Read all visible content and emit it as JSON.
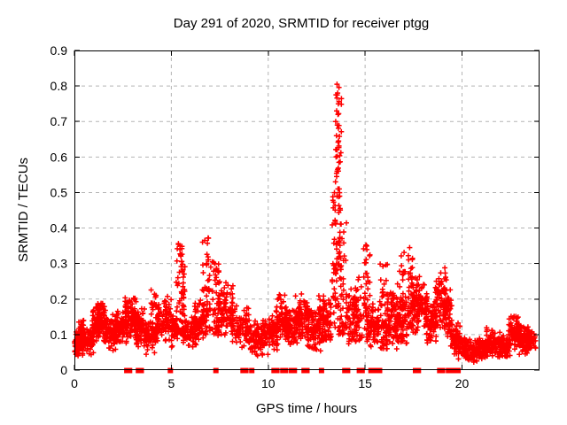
{
  "colors": {
    "marker": "#ff0000",
    "grid": "#b4b4b4",
    "axis": "#000000",
    "background": "#ffffff"
  },
  "chart_data": {
    "type": "scatter",
    "title": "Day 291 of 2020, SRMTID for receiver ptgg",
    "xlabel": "GPS time / hours",
    "ylabel": "SRMTID / TECUs",
    "xlim": [
      0,
      24
    ],
    "ylim": [
      0,
      0.9
    ],
    "xticks": [
      0,
      5,
      10,
      15,
      20
    ],
    "xtick_labels": [
      "0",
      "5",
      "10",
      "15",
      "20"
    ],
    "yticks": [
      0,
      0.1,
      0.2,
      0.3,
      0.4,
      0.5,
      0.6,
      0.7,
      0.8,
      0.9
    ],
    "ytick_labels": [
      "0",
      "0.1",
      "0.2",
      "0.3",
      "0.4",
      "0.5",
      "0.6",
      "0.7",
      "0.8",
      "0.9"
    ],
    "grid": true,
    "legend": false,
    "marker_glyph": "plus",
    "marker_color": "#ff0000",
    "zero_flag_glyph": "filled-square",
    "seed": 2020291,
    "point_clusters": [
      [
        0.0,
        0.35,
        0.03,
        0.12,
        60,
        0
      ],
      [
        0.2,
        0.5,
        0.06,
        0.15,
        40,
        0
      ],
      [
        0.4,
        1.0,
        0.04,
        0.12,
        90,
        0
      ],
      [
        0.9,
        1.3,
        0.07,
        0.18,
        60,
        0
      ],
      [
        1.1,
        1.6,
        0.09,
        0.21,
        70,
        0
      ],
      [
        1.5,
        2.2,
        0.05,
        0.16,
        90,
        0
      ],
      [
        2.1,
        2.7,
        0.07,
        0.17,
        80,
        0
      ],
      [
        2.6,
        3.2,
        0.08,
        0.21,
        90,
        0
      ],
      [
        3.1,
        3.7,
        0.06,
        0.18,
        80,
        0
      ],
      [
        3.6,
        4.3,
        0.04,
        0.15,
        80,
        0
      ],
      [
        3.95,
        4.25,
        0.14,
        0.23,
        18,
        0
      ],
      [
        4.3,
        5.0,
        0.07,
        0.21,
        90,
        0
      ],
      [
        5.0,
        5.35,
        0.06,
        0.16,
        40,
        0
      ],
      [
        5.25,
        5.7,
        0.1,
        0.36,
        70,
        1
      ],
      [
        5.6,
        6.3,
        0.06,
        0.16,
        80,
        0
      ],
      [
        6.2,
        6.7,
        0.08,
        0.2,
        60,
        0
      ],
      [
        6.6,
        7.05,
        0.1,
        0.375,
        60,
        1
      ],
      [
        7.1,
        7.5,
        0.1,
        0.305,
        50,
        1
      ],
      [
        7.4,
        8.2,
        0.08,
        0.26,
        90,
        0
      ],
      [
        8.1,
        9.0,
        0.06,
        0.19,
        90,
        0
      ],
      [
        9.0,
        10.0,
        0.04,
        0.15,
        110,
        0
      ],
      [
        10.0,
        10.5,
        0.05,
        0.16,
        60,
        0
      ],
      [
        10.4,
        11.0,
        0.07,
        0.22,
        80,
        0
      ],
      [
        10.9,
        11.5,
        0.06,
        0.18,
        70,
        0
      ],
      [
        11.4,
        12.1,
        0.07,
        0.22,
        90,
        0
      ],
      [
        12.0,
        12.7,
        0.05,
        0.18,
        80,
        0
      ],
      [
        12.6,
        13.25,
        0.07,
        0.22,
        90,
        0
      ],
      [
        13.3,
        13.6,
        0.12,
        0.5,
        40,
        1
      ],
      [
        13.45,
        13.8,
        0.28,
        0.81,
        55,
        1
      ],
      [
        13.6,
        14.05,
        0.1,
        0.42,
        45,
        1
      ],
      [
        14.0,
        14.6,
        0.06,
        0.25,
        70,
        0
      ],
      [
        14.5,
        14.85,
        0.08,
        0.27,
        35,
        1
      ],
      [
        14.9,
        15.25,
        0.08,
        0.355,
        50,
        1
      ],
      [
        15.2,
        15.7,
        0.06,
        0.2,
        60,
        0
      ],
      [
        15.75,
        16.15,
        0.06,
        0.3,
        55,
        1
      ],
      [
        16.1,
        16.7,
        0.06,
        0.25,
        80,
        0
      ],
      [
        16.6,
        17.15,
        0.05,
        0.21,
        70,
        0
      ],
      [
        16.75,
        17.1,
        0.17,
        0.34,
        25,
        1
      ],
      [
        17.15,
        17.5,
        0.12,
        0.35,
        40,
        1
      ],
      [
        17.4,
        18.2,
        0.08,
        0.28,
        110,
        0
      ],
      [
        18.1,
        18.7,
        0.07,
        0.21,
        80,
        0
      ],
      [
        18.6,
        19.2,
        0.1,
        0.3,
        80,
        0
      ],
      [
        19.1,
        19.5,
        0.07,
        0.24,
        50,
        0
      ],
      [
        19.4,
        19.9,
        0.04,
        0.14,
        60,
        0
      ],
      [
        19.8,
        20.6,
        0.025,
        0.1,
        90,
        0
      ],
      [
        20.5,
        21.3,
        0.02,
        0.09,
        100,
        0
      ],
      [
        21.2,
        22.0,
        0.03,
        0.12,
        90,
        0
      ],
      [
        21.9,
        22.5,
        0.03,
        0.1,
        80,
        0
      ],
      [
        22.4,
        23.0,
        0.05,
        0.16,
        80,
        0
      ],
      [
        22.9,
        23.5,
        0.04,
        0.13,
        80,
        0
      ],
      [
        23.3,
        23.8,
        0.05,
        0.12,
        40,
        0
      ]
    ],
    "peak_points": [
      [
        13.55,
        0.805
      ],
      [
        13.58,
        0.78
      ],
      [
        13.5,
        0.775
      ],
      [
        13.62,
        0.75
      ],
      [
        13.53,
        0.73
      ],
      [
        13.6,
        0.72
      ],
      [
        13.48,
        0.7
      ],
      [
        13.57,
        0.69
      ],
      [
        13.52,
        0.66
      ],
      [
        13.63,
        0.645
      ],
      [
        13.55,
        0.62
      ],
      [
        13.5,
        0.6
      ],
      [
        13.65,
        0.585
      ],
      [
        13.58,
        0.565
      ],
      [
        13.53,
        0.545
      ],
      [
        13.47,
        0.53
      ],
      [
        13.6,
        0.51
      ],
      [
        13.55,
        0.49
      ],
      [
        5.45,
        0.35
      ],
      [
        6.9,
        0.372
      ],
      [
        7.25,
        0.3
      ],
      [
        15.05,
        0.352
      ],
      [
        17.3,
        0.345
      ]
    ],
    "zero_flag_x": [
      2.7,
      2.85,
      3.3,
      3.45,
      4.95,
      7.3,
      8.7,
      8.85,
      9.15,
      10.3,
      10.45,
      10.75,
      10.9,
      11.2,
      11.35,
      11.85,
      12.0,
      12.75,
      13.95,
      14.1,
      14.7,
      14.85,
      15.3,
      15.45,
      15.6,
      15.75,
      17.6,
      17.75,
      18.85,
      19.0,
      19.3,
      19.45,
      19.65,
      19.8
    ]
  }
}
